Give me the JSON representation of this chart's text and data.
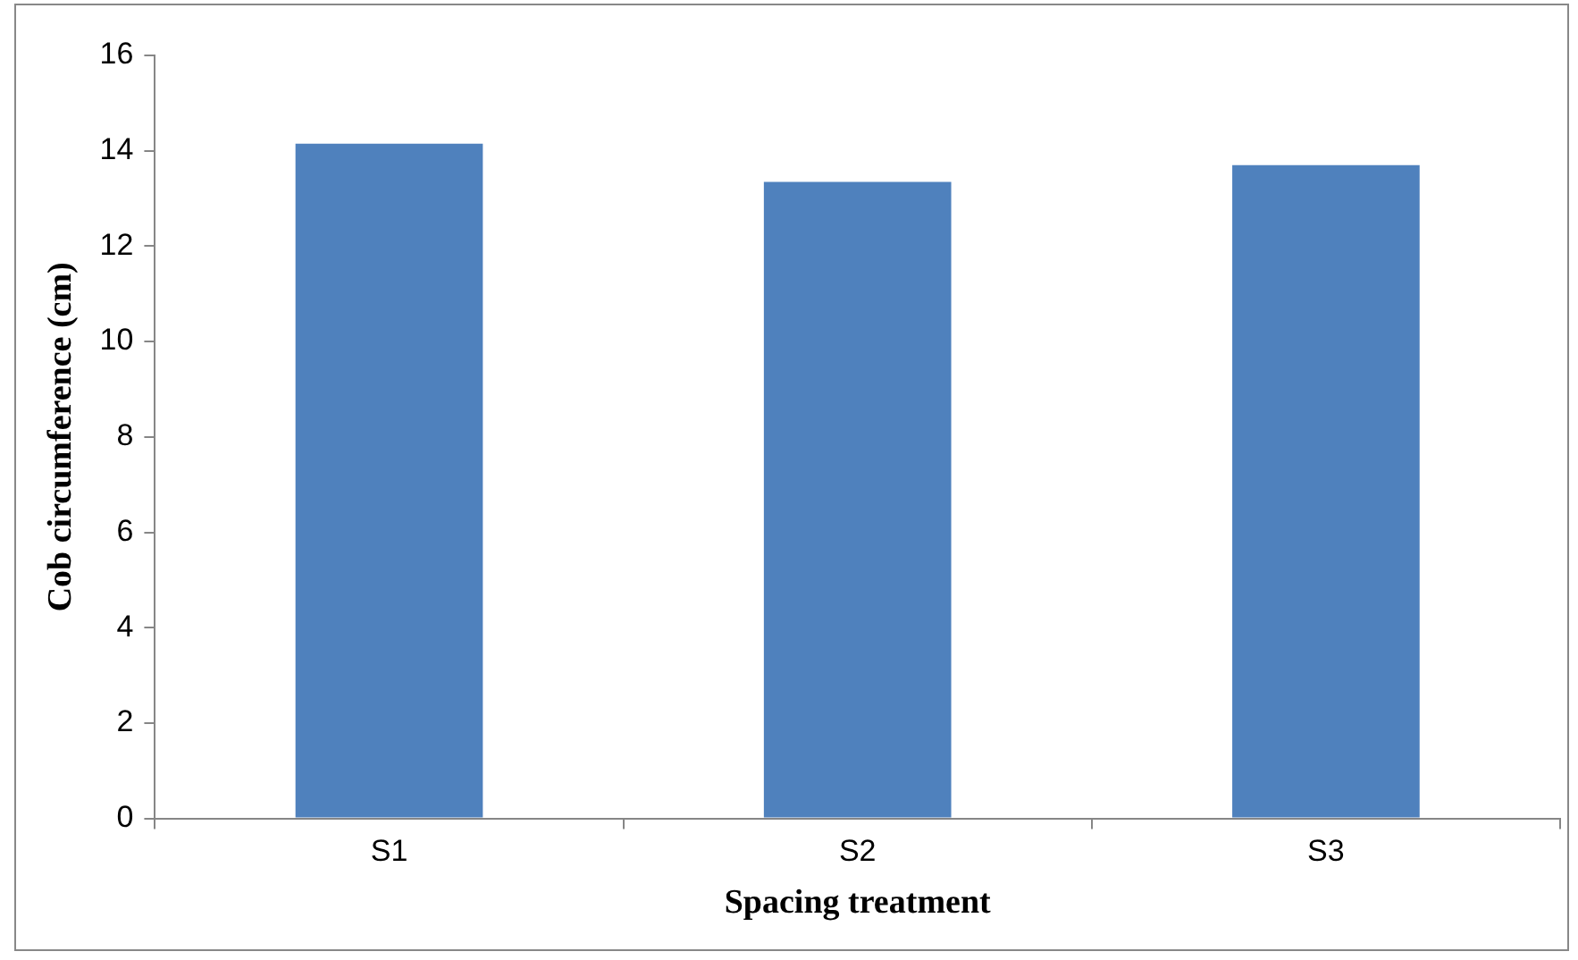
{
  "chart_data": {
    "type": "bar",
    "xlabel": "Spacing treatment",
    "ylabel": "Cob circumference (cm)",
    "categories": [
      "S1",
      "S2",
      "S3"
    ],
    "values": [
      14.15,
      13.35,
      13.7
    ],
    "color": "#4f81bd",
    "ylim": [
      0,
      16
    ],
    "yticks": [
      0,
      2,
      4,
      6,
      8,
      10,
      12,
      14,
      16
    ],
    "grid": false,
    "legend": false
  }
}
